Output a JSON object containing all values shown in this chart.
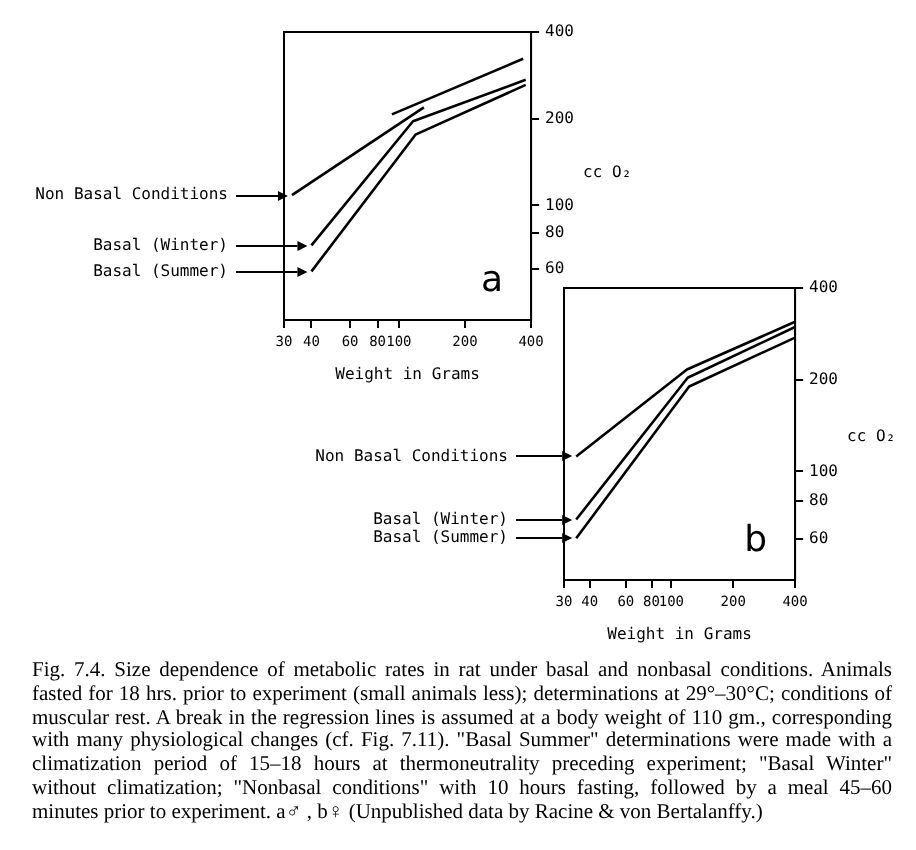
{
  "chart_data": [
    {
      "type": "line",
      "xlabel": "Weight in Grams",
      "ylabel": "cc O₂",
      "log": "xy",
      "xlim": [
        30,
        400
      ],
      "xticks": [
        30,
        40,
        60,
        80,
        100,
        200,
        400
      ],
      "ylim": [
        40,
        400
      ],
      "legend": "left",
      "yticks": [
        60,
        80,
        100,
        200,
        400
      ],
      "marker": "none",
      "line_style": "solid",
      "annotations": [
        "a"
      ],
      "series": [
        {
          "name": "Non Basal Conditions",
          "color": "#000000",
          "x": [
            32.6,
            130
          ],
          "values": [
            108.6,
            219
          ]
        },
        {
          "color": "#000000",
          "x": [
            93,
            368
          ],
          "values": [
            207,
            323
          ]
        },
        {
          "name": "Basal (Winter)",
          "color": "#000000",
          "x": [
            40,
            116,
            378
          ],
          "values": [
            72.6,
            196,
            273
          ]
        },
        {
          "name": "Basal (Summer)",
          "color": "#000000",
          "x": [
            40,
            119,
            378
          ],
          "values": [
            59,
            176,
            262
          ]
        }
      ]
    },
    {
      "type": "line",
      "xlabel": "Weight in Grams",
      "ylabel": "cc O₂",
      "log": "xy",
      "xlim": [
        30,
        400
      ],
      "xticks": [
        30,
        40,
        60,
        80,
        100,
        200,
        400
      ],
      "ylim": [
        44,
        400
      ],
      "legend": "left",
      "yticks": [
        60,
        80,
        100,
        200,
        400
      ],
      "marker": "none",
      "line_style": "solid",
      "annotations": [
        "b",
        "Fig. 7.4. Size dependence of metabolic rates in rat under basal and nonbasal conditions. Animals fasted for 18 hrs. prior to experiment (small animals less); determinations at 29°–30°C; conditions of muscular rest. A break in the regression lines is assumed at a body weight of 110 gm., corresponding with many physiological changes (cf. Fig. 7.11). \"Basal Summer\" determinations were made with a climatization period of 15–18 hours at thermoneutrality preceding experiment; \"Basal Winter\" without climatization; \"Nonbasal conditions\" with 10 hours fasting, followed by a meal 45–60 minutes prior to experiment. a♂ , b♀ (Unpublished data by Racine & von Bertalanffy.)"
      ],
      "series": [
        {
          "name": "Non Basal Conditions",
          "color": "#000000",
          "x": [
            34.4,
            119,
            400
          ],
          "values": [
            112,
            216,
            310
          ]
        },
        {
          "name": "Basal (Winter)",
          "color": "#000000",
          "x": [
            34.4,
            120,
            400
          ],
          "values": [
            69.5,
            203,
            298
          ]
        },
        {
          "name": "Basal (Summer)",
          "color": "#000000",
          "x": [
            34.4,
            122,
            400
          ],
          "values": [
            60.3,
            190,
            275
          ]
        }
      ]
    }
  ]
}
